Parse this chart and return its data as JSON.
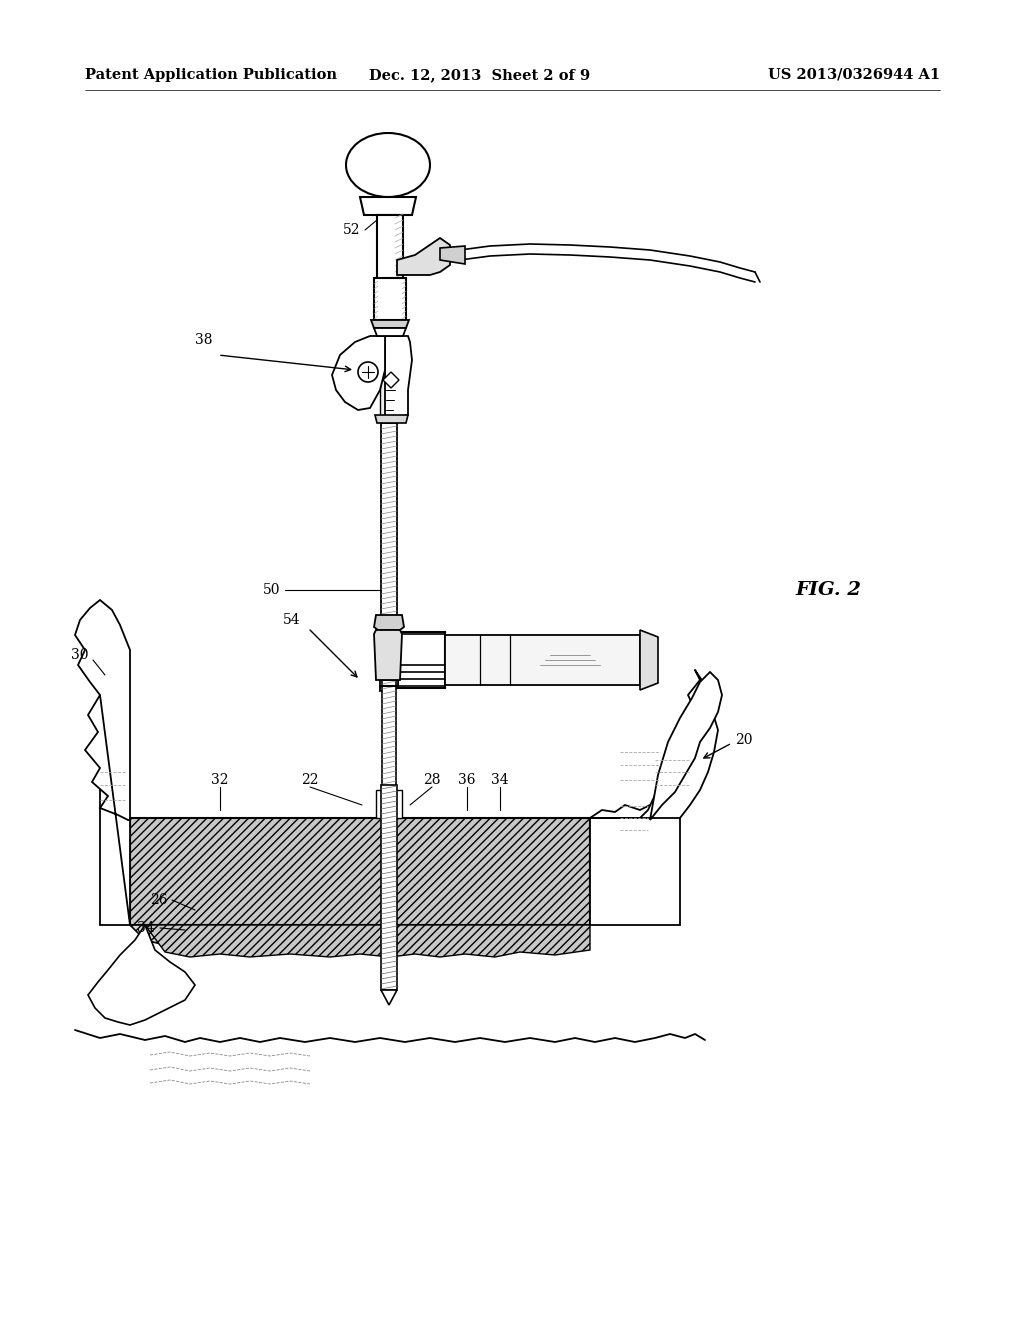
{
  "title_left": "Patent Application Publication",
  "title_center": "Dec. 12, 2013  Sheet 2 of 9",
  "title_right": "US 2013/0326944 A1",
  "fig_label": "FIG. 2",
  "background_color": "#ffffff",
  "line_color": "#000000",
  "header_fontsize": 10.5,
  "label_fontsize": 10,
  "fig_label_fontsize": 14,
  "gray_light": "#d8d8d8",
  "gray_mid": "#b0b0b0",
  "gray_dark": "#888888"
}
